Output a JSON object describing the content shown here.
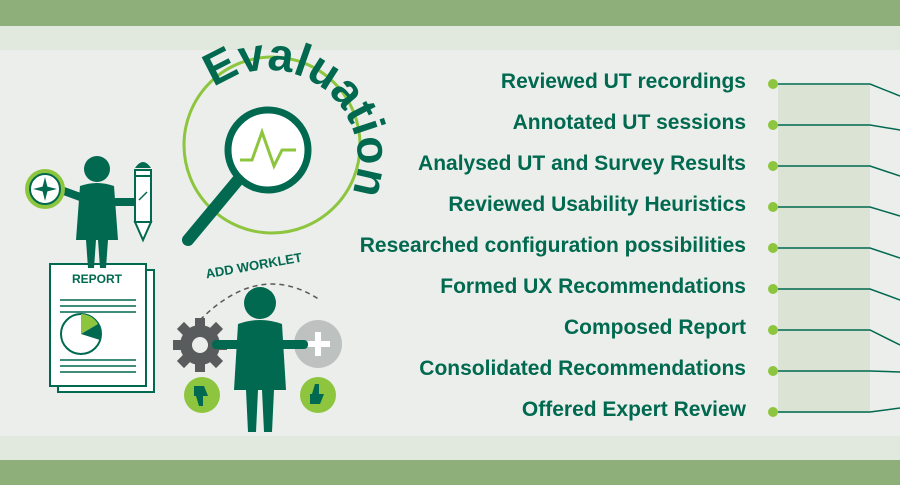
{
  "title": "Evaluation",
  "report_label": "REPORT",
  "worklet_label": "ADD WORKLET",
  "tasks": [
    "Reviewed UT recordings",
    "Annotated UT sessions",
    "Analysed UT and Survey Results",
    "Reviewed Usability Heuristics",
    "Researched configuration possibilities",
    "Formed UX Recommendations",
    "Composed Report",
    "Consolidated Recommendations",
    "Offered Expert Review"
  ],
  "icons": [
    "compass-icon",
    "pencil-icon",
    "magnifier-icon",
    "report-doc-icon",
    "pie-chart-icon",
    "gear-icon",
    "plus-icon",
    "thumbs-down-icon",
    "thumbs-up-icon",
    "person-icon"
  ],
  "colors": {
    "primary": "#00694f",
    "accent": "#8dc53e",
    "band": "#8eaf7a",
    "panel": "#ebeeeb",
    "strip": "#e1e8dd"
  }
}
